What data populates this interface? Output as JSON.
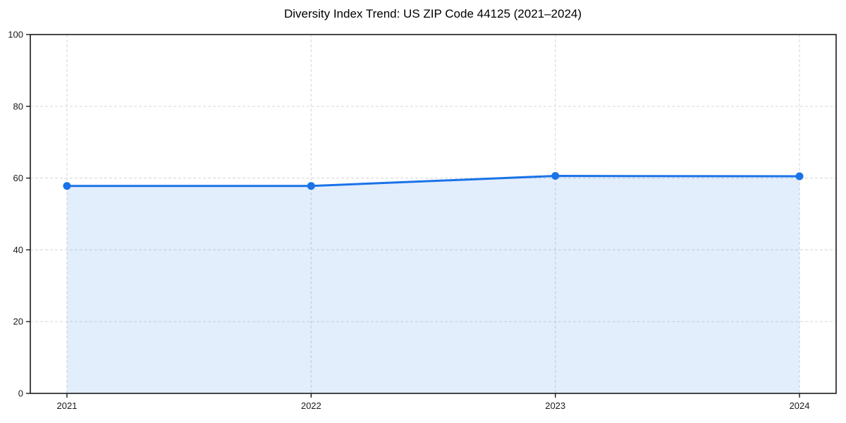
{
  "title": "Diversity Index Trend: US ZIP Code 44125 (2021–2024)",
  "chart_data": {
    "type": "area",
    "title": "Diversity Index Trend: US ZIP Code 44125 (2021–2024)",
    "x": [
      2021,
      2022,
      2023,
      2024
    ],
    "series": [
      {
        "name": "Diversity Index",
        "values": [
          57.8,
          57.8,
          60.6,
          60.5
        ]
      }
    ],
    "xlabel": "",
    "ylabel": "",
    "ylim": [
      0,
      100
    ],
    "yticks": [
      0,
      20,
      40,
      60,
      80,
      100
    ],
    "xticks": [
      "2021",
      "2022",
      "2023",
      "2024"
    ],
    "grid": true,
    "grid_style": "dashed",
    "legend_position": "none",
    "colors": {
      "line": "#1a73e8",
      "marker": "#1a73e8",
      "fill": "rgba(26,115,232,0.12)",
      "grid": "#dcdcdc",
      "spine": "#1a1a1a",
      "tick_text": "#1a1a1a",
      "background": "#ffffff"
    }
  }
}
